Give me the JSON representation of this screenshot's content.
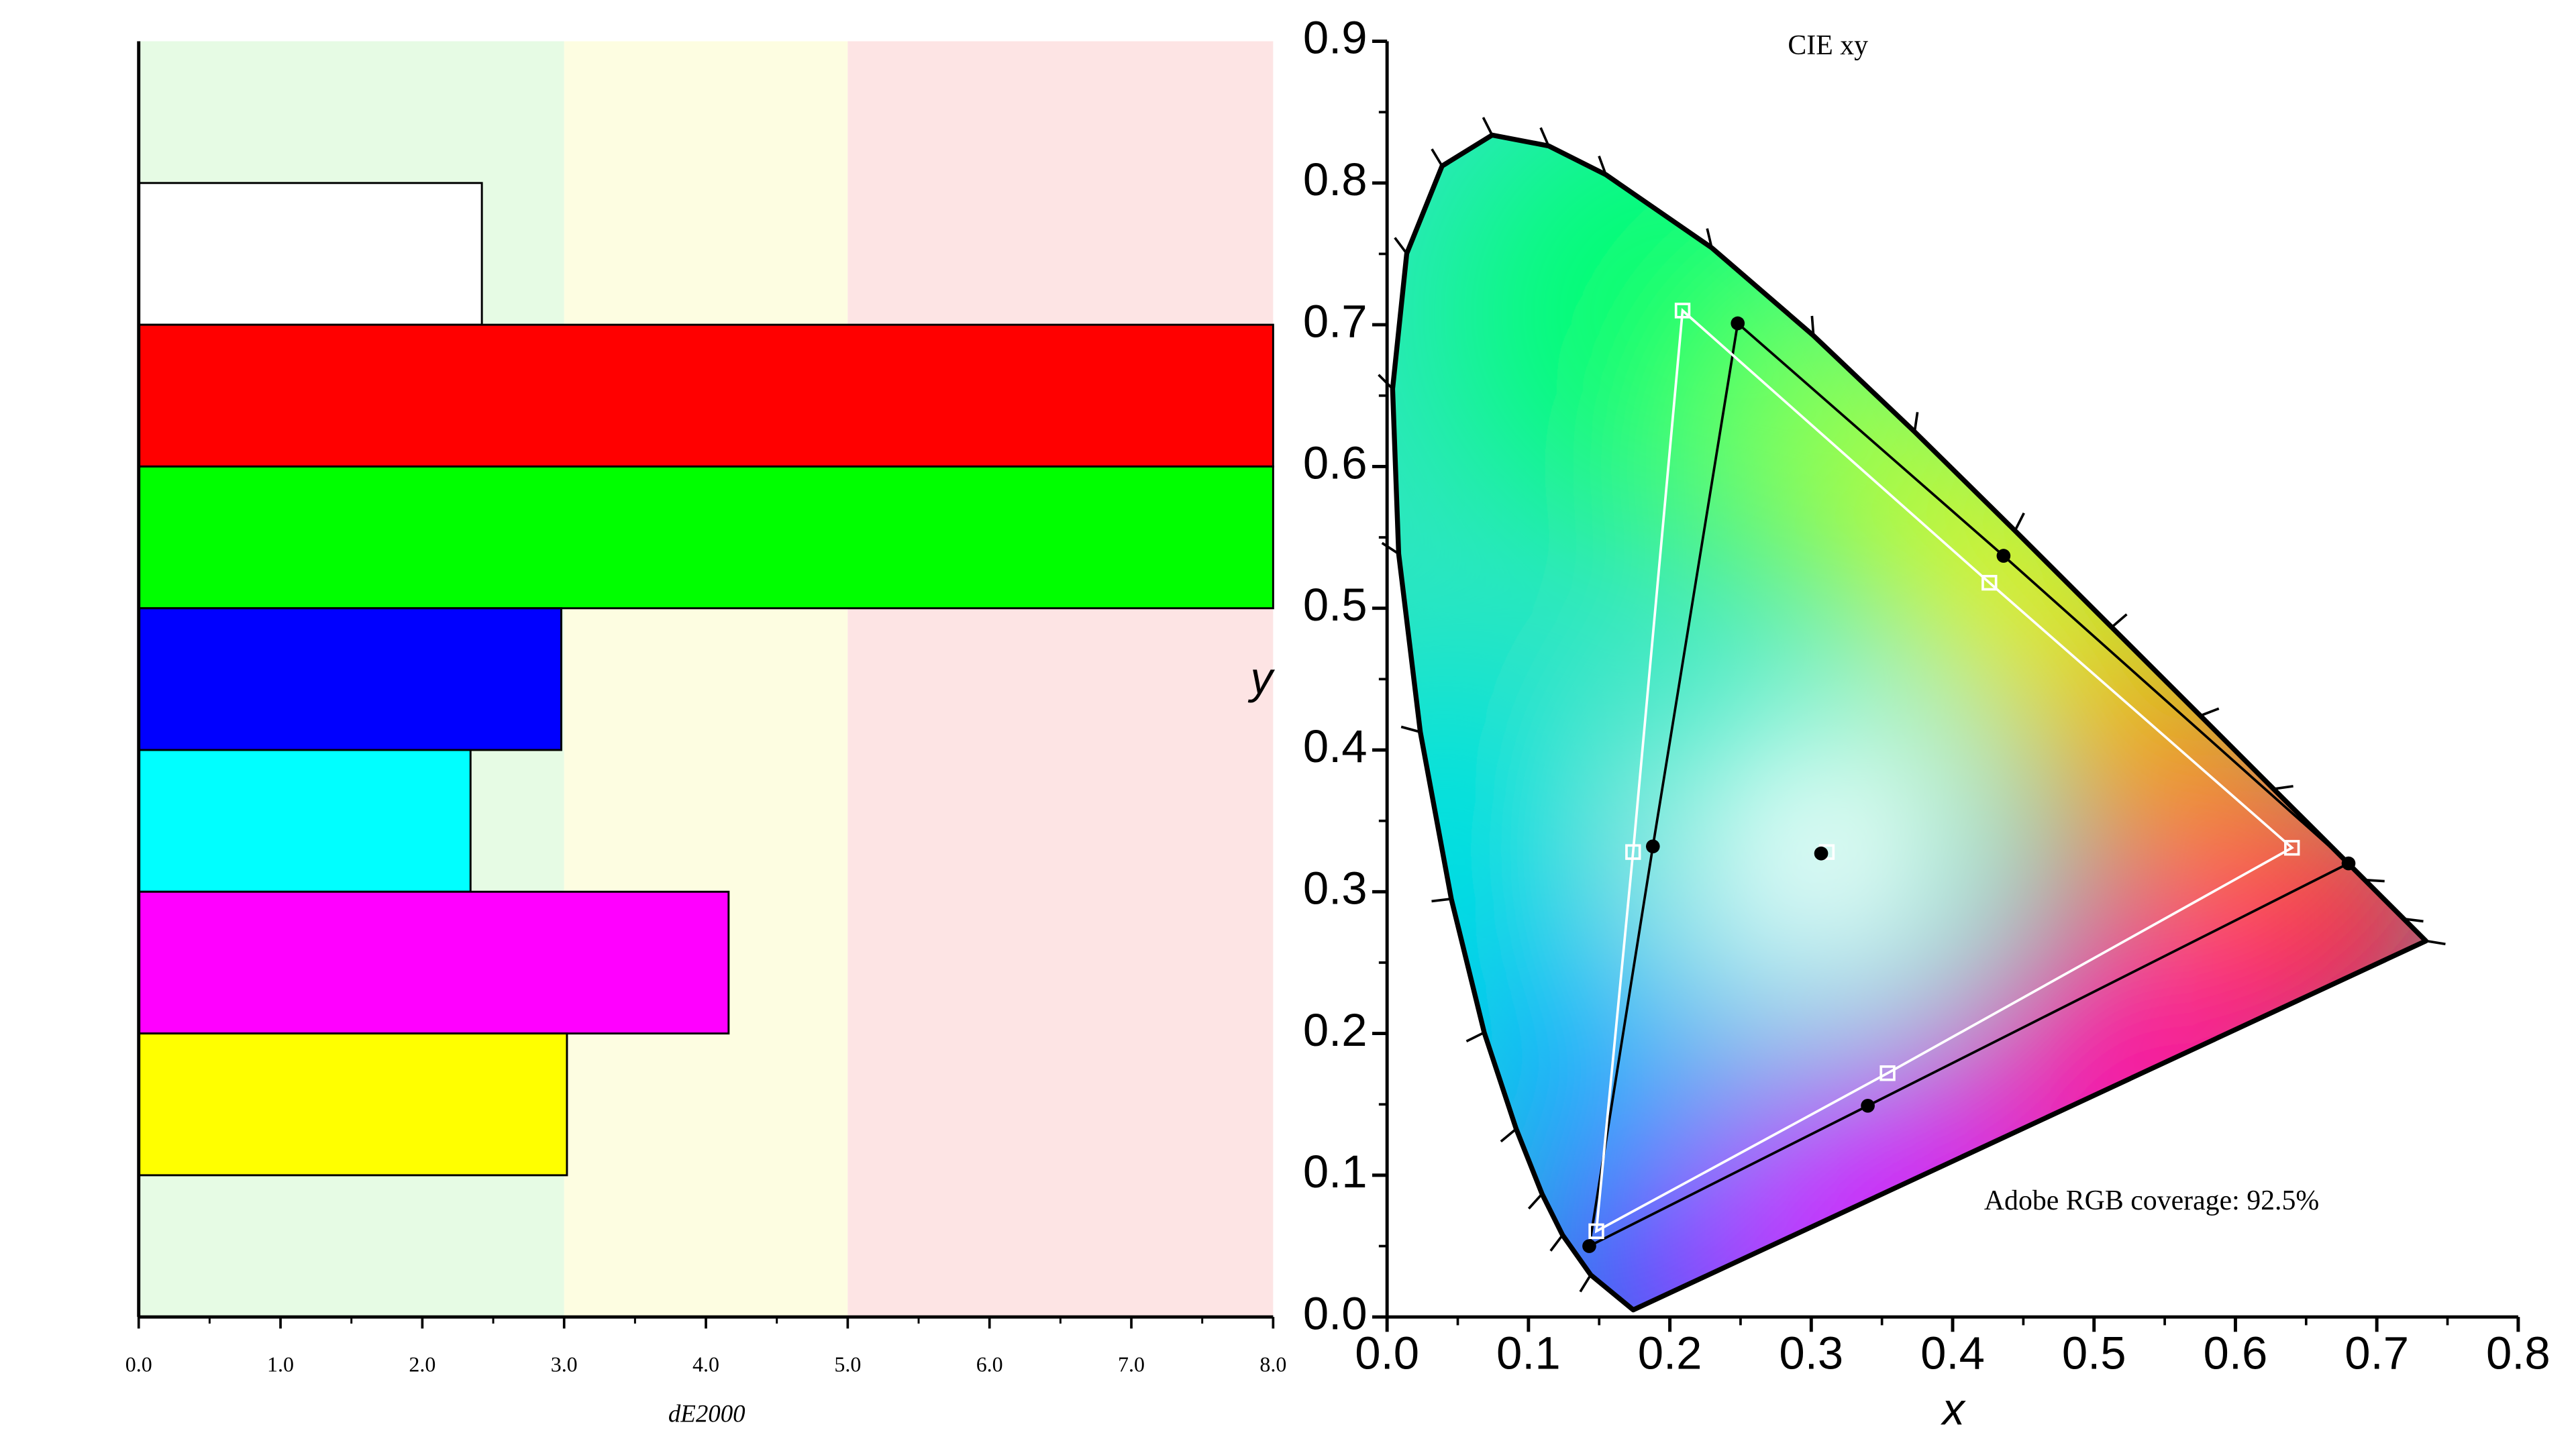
{
  "chart_data": [
    {
      "type": "bar",
      "orientation": "horizontal",
      "xlabel": "dE2000",
      "categories": [
        null,
        null,
        null,
        null,
        null,
        null,
        null
      ],
      "values": [
        2.42,
        8.0,
        8.0,
        2.98,
        2.34,
        4.16,
        3.02
      ],
      "colors": [
        "#ffffff",
        "#ff0000",
        "#00ff00",
        "#0000ff",
        "#00ffff",
        "#ff00ff",
        "#ffff00"
      ],
      "xlim": [
        0,
        8
      ],
      "xticks": [
        {
          "value": 0,
          "label": "0.0"
        },
        {
          "value": 1,
          "label": "1.0"
        },
        {
          "value": 2,
          "label": "2.0"
        },
        {
          "value": 3,
          "label": "3.0"
        },
        {
          "value": 4,
          "label": "4.0"
        },
        {
          "value": 5,
          "label": "5.0"
        },
        {
          "value": 6,
          "label": "6.0"
        },
        {
          "value": 7,
          "label": "7.0"
        },
        {
          "value": 8,
          "label": "8.0"
        }
      ],
      "zones": [
        {
          "from": 0,
          "to": 3,
          "color": "#e6fbe4"
        },
        {
          "from": 3,
          "to": 5,
          "color": "#fdfde1"
        },
        {
          "from": 5,
          "to": 8,
          "color": "#fde4e4"
        }
      ]
    },
    {
      "type": "chromaticity",
      "title": "CIE xy",
      "xlabel": "x",
      "ylabel": "y",
      "annotation": "Adobe RGB coverage: 92.5%",
      "xlim": [
        0,
        0.8
      ],
      "ylim": [
        0,
        0.9
      ],
      "xticks": [
        {
          "value": 0,
          "label": "0.0"
        },
        {
          "value": 0.1,
          "label": "0.1"
        },
        {
          "value": 0.2,
          "label": "0.2"
        },
        {
          "value": 0.3,
          "label": "0.3"
        },
        {
          "value": 0.4,
          "label": "0.4"
        },
        {
          "value": 0.5,
          "label": "0.5"
        },
        {
          "value": 0.6,
          "label": "0.6"
        },
        {
          "value": 0.7,
          "label": "0.7"
        },
        {
          "value": 0.8,
          "label": "0.8"
        }
      ],
      "yticks": [
        {
          "value": 0,
          "label": "0.0"
        },
        {
          "value": 0.1,
          "label": "0.1"
        },
        {
          "value": 0.2,
          "label": "0.2"
        },
        {
          "value": 0.3,
          "label": "0.3"
        },
        {
          "value": 0.4,
          "label": "0.4"
        },
        {
          "value": 0.5,
          "label": "0.5"
        },
        {
          "value": 0.6,
          "label": "0.6"
        },
        {
          "value": 0.7,
          "label": "0.7"
        },
        {
          "value": 0.8,
          "label": "0.8"
        },
        {
          "value": 0.9,
          "label": "0.9"
        }
      ],
      "locus": {
        "x": [
          0.1741,
          0.144,
          0.1241,
          0.1096,
          0.0913,
          0.0687,
          0.0454,
          0.0235,
          0.0082,
          0.0039,
          0.0139,
          0.0389,
          0.0743,
          0.1142,
          0.1547,
          0.2296,
          0.3016,
          0.3731,
          0.4441,
          0.5125,
          0.5752,
          0.627,
          0.6915,
          0.719,
          0.7347
        ],
        "y": [
          0.005,
          0.0297,
          0.0578,
          0.0868,
          0.1327,
          0.2007,
          0.295,
          0.4127,
          0.5384,
          0.6548,
          0.7502,
          0.812,
          0.8338,
          0.8262,
          0.8059,
          0.7543,
          0.6923,
          0.6245,
          0.5547,
          0.4866,
          0.4242,
          0.3725,
          0.3083,
          0.2809,
          0.2653
        ]
      },
      "series": [
        {
          "color": "#000000",
          "marker": "dot",
          "closed": true,
          "x": [
            0.68,
            0.436,
            0.248,
            0.188,
            0.143,
            0.34
          ],
          "y": [
            0.32,
            0.537,
            0.701,
            0.332,
            0.05,
            0.149
          ]
        },
        {
          "color": "#ffffff",
          "marker": "square",
          "closed": true,
          "x": [
            0.64,
            0.426,
            0.209,
            0.174,
            0.148,
            0.354
          ],
          "y": [
            0.331,
            0.518,
            0.71,
            0.328,
            0.0605,
            0.172
          ]
        },
        {
          "color": "#ffffff",
          "marker": "square",
          "closed": false,
          "x": [
            0.311
          ],
          "y": [
            0.328
          ]
        },
        {
          "color": "#000000",
          "marker": "dot",
          "closed": false,
          "x": [
            0.307
          ],
          "y": [
            0.327
          ]
        }
      ]
    }
  ]
}
